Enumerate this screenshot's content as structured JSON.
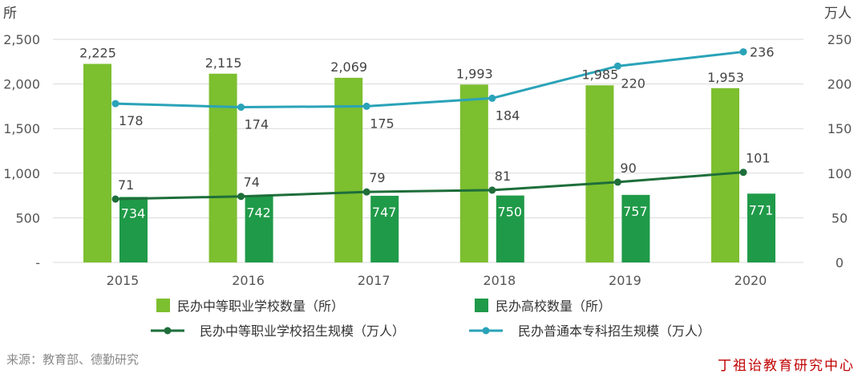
{
  "colors": {
    "bar_schools": "#7cbf2f",
    "bar_colleges": "#1f9a48",
    "line_vocational": "#1e6e3a",
    "line_undergrad": "#2aa3b8",
    "grid": "#d9d9d9",
    "watermark": "#c00000"
  },
  "chart_data": {
    "type": "bar",
    "categories": [
      "2015",
      "2016",
      "2017",
      "2018",
      "2019",
      "2020"
    ],
    "left_axis": {
      "unit": "所",
      "ylim": [
        0,
        2500
      ],
      "ticks": [
        "-",
        "500",
        "1,000",
        "1,500",
        "2,000",
        "2,500"
      ],
      "tick_values": [
        0,
        500,
        1000,
        1500,
        2000,
        2500
      ]
    },
    "right_axis": {
      "unit": "万人",
      "ylim": [
        0,
        250
      ],
      "ticks": [
        "0",
        "50",
        "100",
        "150",
        "200",
        "250"
      ],
      "tick_values": [
        0,
        50,
        100,
        150,
        200,
        250
      ]
    },
    "series": [
      {
        "name": "民办中等职业学校数量（所）",
        "kind": "bar",
        "axis": "left",
        "values": [
          2225,
          2115,
          2069,
          1993,
          1985,
          1953
        ],
        "labels": [
          "2,225",
          "2,115",
          "2,069",
          "1,993",
          "1,985",
          "1,953"
        ]
      },
      {
        "name": "民办高校数量（所）",
        "kind": "bar",
        "axis": "left",
        "values": [
          734,
          742,
          747,
          750,
          757,
          771
        ],
        "labels": [
          "734",
          "742",
          "747",
          "750",
          "757",
          "771"
        ]
      },
      {
        "name": "民办中等职业学校招生规模（万人）",
        "kind": "line",
        "axis": "right",
        "values": [
          71,
          74,
          79,
          81,
          90,
          101
        ],
        "labels": [
          "71",
          "74",
          "79",
          "81",
          "90",
          "101"
        ]
      },
      {
        "name": "民办普通本专科招生规模（万人）",
        "kind": "line",
        "axis": "right",
        "values": [
          178,
          174,
          175,
          184,
          220,
          236
        ],
        "labels": [
          "178",
          "174",
          "175",
          "184",
          "220",
          "236"
        ]
      }
    ],
    "grid": true,
    "legend_position": "bottom"
  },
  "source": "来源：教育部、德勤研究",
  "watermark": "丁祖诒教育研究中心"
}
